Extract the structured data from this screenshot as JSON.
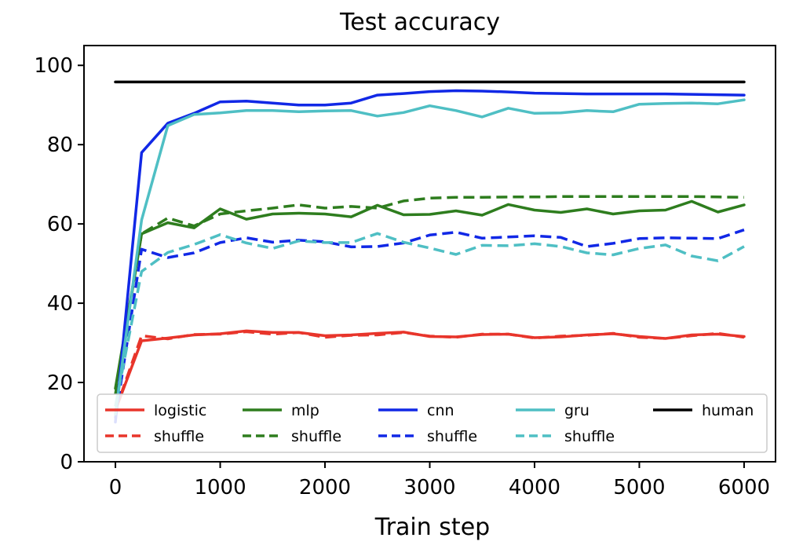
{
  "chart_data": {
    "type": "line",
    "title": "Test accuracy",
    "xlabel": "Train step",
    "ylabel": "",
    "xlim": [
      -300,
      6300
    ],
    "ylim": [
      0,
      105
    ],
    "xticks": [
      0,
      1000,
      2000,
      3000,
      4000,
      5000,
      6000
    ],
    "yticks": [
      0,
      20,
      40,
      60,
      80,
      100
    ],
    "grid": false,
    "legend_position": "lower-center",
    "series": [
      {
        "name": "logistic",
        "color": "#e8352b",
        "style": "solid",
        "x": [
          0,
          250,
          500,
          750,
          1000,
          1250,
          1500,
          1750,
          2000,
          2250,
          2500,
          2750,
          3000,
          3250,
          3500,
          3750,
          4000,
          4250,
          4500,
          4750,
          5000,
          5250,
          5500,
          5750,
          6000
        ],
        "y": [
          13,
          30.5,
          31.2,
          32,
          32.3,
          33,
          32.6,
          32.6,
          31.8,
          32,
          32.4,
          32.7,
          31.6,
          31.5,
          32.1,
          32.2,
          31.3,
          31.5,
          32,
          32.3,
          31.6,
          31.1,
          32,
          32.2,
          31.6
        ]
      },
      {
        "name": "shuffle",
        "color": "#e8352b",
        "style": "dashed",
        "x": [
          0,
          250,
          500,
          750,
          1000,
          1250,
          1500,
          1750,
          2000,
          2250,
          2500,
          2750,
          3000,
          3250,
          3500,
          3750,
          4000,
          4250,
          4500,
          4750,
          5000,
          5250,
          5500,
          5750,
          6000
        ],
        "y": [
          13,
          31.8,
          31,
          32.1,
          32.2,
          32.8,
          32.2,
          32.6,
          31.4,
          31.9,
          32,
          32.6,
          31.7,
          31.4,
          32.2,
          32.2,
          31.2,
          31.7,
          31.9,
          32.4,
          31.4,
          31.1,
          31.8,
          32.4,
          31.4
        ]
      },
      {
        "name": "mlp",
        "color": "#2e7d1e",
        "style": "solid",
        "x": [
          0,
          250,
          500,
          750,
          1000,
          1250,
          1500,
          1750,
          2000,
          2250,
          2500,
          2750,
          3000,
          3250,
          3500,
          3750,
          4000,
          4250,
          4500,
          4750,
          5000,
          5250,
          5500,
          5750,
          6000
        ],
        "y": [
          18.5,
          57.5,
          60.3,
          59,
          63.8,
          61.2,
          62.5,
          62.7,
          62.5,
          61.8,
          64.7,
          62.3,
          62.4,
          63.3,
          62.2,
          64.9,
          63.5,
          62.9,
          63.8,
          62.5,
          63.3,
          63.5,
          65.7,
          63,
          64.8
        ]
      },
      {
        "name": "shuffle",
        "color": "#2e7d1e",
        "style": "dashed",
        "x": [
          0,
          250,
          500,
          750,
          1000,
          1250,
          1500,
          1750,
          2000,
          2250,
          2500,
          2750,
          3000,
          3250,
          3500,
          3750,
          4000,
          4250,
          4500,
          4750,
          5000,
          5250,
          5500,
          5750,
          6000
        ],
        "y": [
          17,
          57.5,
          61.5,
          59.5,
          62.5,
          63.3,
          64,
          64.8,
          64,
          64.4,
          64,
          65.8,
          66.5,
          66.7,
          66.7,
          66.8,
          66.8,
          66.9,
          66.9,
          66.9,
          66.9,
          66.9,
          66.9,
          66.8,
          66.7
        ]
      },
      {
        "name": "cnn",
        "color": "#1128e6",
        "style": "solid",
        "x": [
          0,
          250,
          500,
          750,
          1000,
          1250,
          1500,
          1750,
          2000,
          2250,
          2500,
          2750,
          3000,
          3250,
          3500,
          3750,
          4000,
          4250,
          4500,
          4750,
          5000,
          5250,
          5500,
          5750,
          6000
        ],
        "y": [
          10,
          78,
          85.4,
          87.9,
          90.8,
          91,
          90.5,
          90,
          90,
          90.5,
          92.5,
          92.9,
          93.4,
          93.6,
          93.5,
          93.3,
          93,
          92.9,
          92.8,
          92.8,
          92.8,
          92.8,
          92.7,
          92.6,
          92.5
        ]
      },
      {
        "name": "shuffle",
        "color": "#1128e6",
        "style": "dashed",
        "x": [
          0,
          250,
          500,
          750,
          1000,
          1250,
          1500,
          1750,
          2000,
          2250,
          2500,
          2750,
          3000,
          3250,
          3500,
          3750,
          4000,
          4250,
          4500,
          4750,
          5000,
          5250,
          5500,
          5750,
          6000
        ],
        "y": [
          11,
          53.6,
          51.5,
          52.7,
          55.3,
          56.5,
          55.4,
          55.9,
          55.5,
          54.2,
          54.3,
          55.2,
          57.2,
          57.9,
          56.4,
          56.7,
          57,
          56.6,
          54.3,
          55.1,
          56.3,
          56.5,
          56.4,
          56.3,
          58.5
        ]
      },
      {
        "name": "gru",
        "color": "#4fbfc4",
        "style": "solid",
        "x": [
          0,
          250,
          500,
          750,
          1000,
          1250,
          1500,
          1750,
          2000,
          2250,
          2500,
          2750,
          3000,
          3250,
          3500,
          3750,
          4000,
          4250,
          4500,
          4750,
          5000,
          5250,
          5500,
          5750,
          6000
        ],
        "y": [
          12,
          61,
          84.8,
          87.6,
          88,
          88.6,
          88.6,
          88.3,
          88.5,
          88.6,
          87.2,
          88.1,
          89.8,
          88.6,
          87,
          89.2,
          87.9,
          88,
          88.6,
          88.3,
          90.2,
          90.4,
          90.5,
          90.3,
          91.3
        ]
      },
      {
        "name": "shuffle",
        "color": "#4fbfc4",
        "style": "dashed",
        "x": [
          0,
          250,
          500,
          750,
          1000,
          1250,
          1500,
          1750,
          2000,
          2250,
          2500,
          2750,
          3000,
          3250,
          3500,
          3750,
          4000,
          4250,
          4500,
          4750,
          5000,
          5250,
          5500,
          5750,
          6000
        ],
        "y": [
          14,
          48,
          52.8,
          54.8,
          57.3,
          55.2,
          53.8,
          55.7,
          55.3,
          55.3,
          57.6,
          55.4,
          53.9,
          52.3,
          54.6,
          54.5,
          55,
          54.3,
          52.7,
          52.2,
          53.8,
          54.7,
          51.9,
          50.7,
          54.3
        ]
      },
      {
        "name": "human",
        "color": "#000000",
        "style": "solid",
        "x": [
          0,
          6000
        ],
        "y": [
          95.8,
          95.8
        ]
      }
    ]
  }
}
